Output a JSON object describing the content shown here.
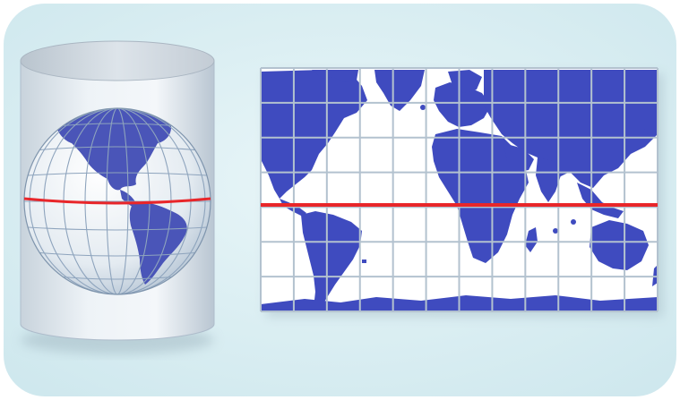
{
  "diagram": {
    "subject": "cylindrical-map-projection",
    "components": [
      "globe-in-cylinder",
      "flat-map-grid"
    ],
    "grid": {
      "columns": 12,
      "rows": 7
    },
    "colors": {
      "panel_background": "#d6edf1",
      "cylinder_body": "#e8eef3",
      "cylinder_top": "#cfd8e0",
      "ocean": "#ffffff",
      "land": "#3f4bbf",
      "globe_land": "#4a55b8",
      "graticule": "#a9bdd4",
      "equator": "#e8262a"
    }
  }
}
